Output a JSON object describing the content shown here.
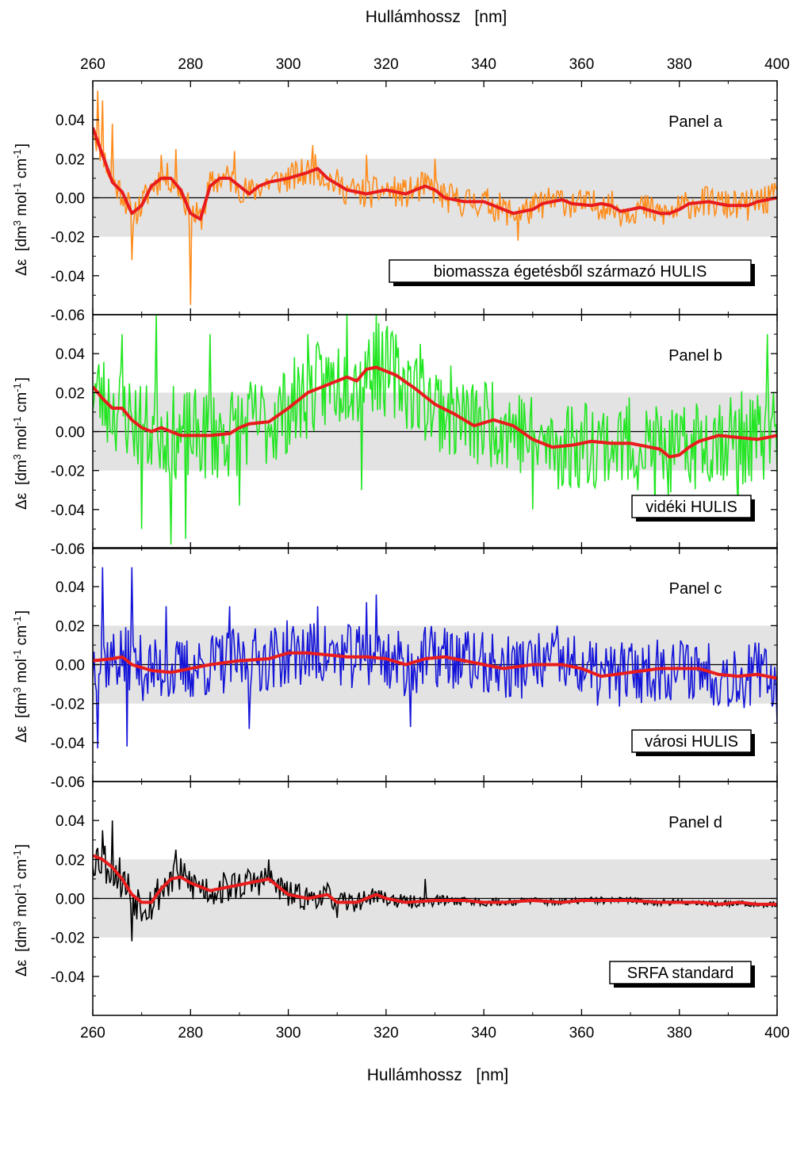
{
  "figure": {
    "top_axis_title": "Hullámhossz   [nm]",
    "bottom_axis_title": "Hullámhossz   [nm]"
  },
  "colors": {
    "raw_a": "#ff8c1a",
    "raw_b": "#22e622",
    "raw_c": "#1414d9",
    "raw_d": "#000000",
    "smooth": "#e81c1c",
    "band": "#e3e3e3"
  },
  "chart_data": [
    {
      "type": "line",
      "panel_label": "Panel a",
      "box_label": "biomassza égetésből származó HULIS",
      "ylabel_parts": [
        "Δε",
        "[dm",
        "3",
        " mol",
        "-1",
        " cm",
        "-1",
        "]"
      ],
      "xlim": [
        260,
        400
      ],
      "ylim": [
        -0.06,
        0.06
      ],
      "x_ticks": [
        260,
        280,
        300,
        320,
        340,
        360,
        380,
        400
      ],
      "y_ticks": [
        "-0.04",
        "-0.02",
        "0.00",
        "0.02",
        "0.04"
      ],
      "y_bottom_tick": "-0.06",
      "band": [
        -0.02,
        0.02
      ],
      "noise": 0.008,
      "seed": 11,
      "series": [
        {
          "role": "raw",
          "color": "#ff8c1a",
          "spikes": [
            [
              261,
              0.055
            ],
            [
              262,
              0.05
            ],
            [
              264,
              0.038
            ],
            [
              268,
              -0.032
            ],
            [
              274,
              0.022
            ],
            [
              277,
              0.025
            ],
            [
              280,
              -0.055
            ],
            [
              289,
              0.024
            ],
            [
              305,
              0.027
            ],
            [
              316,
              0.022
            ],
            [
              330,
              0.02
            ],
            [
              347,
              -0.022
            ]
          ]
        },
        {
          "role": "smoothed",
          "color": "#e81c1c",
          "points": [
            [
              260,
              0.036
            ],
            [
              262,
              0.022
            ],
            [
              264,
              0.008
            ],
            [
              266,
              0.003
            ],
            [
              268,
              -0.008
            ],
            [
              270,
              -0.004
            ],
            [
              272,
              0.006
            ],
            [
              274,
              0.01
            ],
            [
              276,
              0.01
            ],
            [
              278,
              0.004
            ],
            [
              280,
              -0.008
            ],
            [
              282,
              -0.011
            ],
            [
              284,
              0.006
            ],
            [
              286,
              0.01
            ],
            [
              288,
              0.01
            ],
            [
              290,
              0.006
            ],
            [
              292,
              0.002
            ],
            [
              294,
              0.006
            ],
            [
              296,
              0.008
            ],
            [
              300,
              0.01
            ],
            [
              304,
              0.013
            ],
            [
              306,
              0.015
            ],
            [
              308,
              0.01
            ],
            [
              312,
              0.004
            ],
            [
              316,
              0.002
            ],
            [
              320,
              0.004
            ],
            [
              322,
              0.003
            ],
            [
              324,
              0.002
            ],
            [
              326,
              0.004
            ],
            [
              328,
              0.006
            ],
            [
              330,
              0.004
            ],
            [
              332,
              0.0
            ],
            [
              336,
              -0.002
            ],
            [
              340,
              -0.002
            ],
            [
              344,
              -0.006
            ],
            [
              346,
              -0.008
            ],
            [
              348,
              -0.007
            ],
            [
              350,
              -0.006
            ],
            [
              352,
              -0.003
            ],
            [
              356,
              -0.001
            ],
            [
              358,
              -0.003
            ],
            [
              362,
              -0.004
            ],
            [
              364,
              -0.003
            ],
            [
              366,
              -0.004
            ],
            [
              368,
              -0.007
            ],
            [
              370,
              -0.006
            ],
            [
              372,
              -0.005
            ],
            [
              376,
              -0.008
            ],
            [
              378,
              -0.008
            ],
            [
              380,
              -0.006
            ],
            [
              382,
              -0.003
            ],
            [
              386,
              -0.002
            ],
            [
              390,
              -0.004
            ],
            [
              394,
              -0.004
            ],
            [
              396,
              -0.002
            ],
            [
              400,
              0.0
            ]
          ]
        }
      ]
    },
    {
      "type": "line",
      "panel_label": "Panel b",
      "box_label": "vidéki HULIS",
      "ylabel_parts": [
        "Δε",
        "[dm",
        "3",
        " mol",
        "-1",
        " cm",
        "-1",
        "]"
      ],
      "xlim": [
        260,
        400
      ],
      "ylim": [
        -0.06,
        0.06
      ],
      "x_ticks": [
        260,
        280,
        300,
        320,
        340,
        360,
        380,
        400
      ],
      "y_ticks": [
        "-0.04",
        "-0.02",
        "0.00",
        "0.02",
        "0.04"
      ],
      "y_bottom_tick": "-0.06",
      "band": [
        -0.02,
        0.02
      ],
      "noise": 0.024,
      "seed": 23,
      "series": [
        {
          "role": "raw",
          "color": "#22e622",
          "spikes": [
            [
              266,
              0.05
            ],
            [
              270,
              -0.05
            ],
            [
              273,
              0.06
            ],
            [
              276,
              -0.058
            ],
            [
              279,
              -0.055
            ],
            [
              284,
              0.05
            ],
            [
              290,
              -0.038
            ],
            [
              304,
              0.05
            ],
            [
              312,
              0.06
            ],
            [
              315,
              -0.03
            ],
            [
              318,
              0.06
            ],
            [
              327,
              0.045
            ],
            [
              350,
              -0.04
            ],
            [
              375,
              -0.045
            ],
            [
              392,
              -0.04
            ],
            [
              398,
              0.05
            ]
          ]
        },
        {
          "role": "smoothed",
          "color": "#e81c1c",
          "points": [
            [
              260,
              0.023
            ],
            [
              262,
              0.017
            ],
            [
              264,
              0.012
            ],
            [
              266,
              0.012
            ],
            [
              268,
              0.006
            ],
            [
              270,
              0.002
            ],
            [
              272,
              0.0
            ],
            [
              274,
              0.002
            ],
            [
              276,
              0.0
            ],
            [
              278,
              -0.002
            ],
            [
              280,
              -0.002
            ],
            [
              284,
              -0.002
            ],
            [
              288,
              -0.001
            ],
            [
              290,
              0.002
            ],
            [
              292,
              0.004
            ],
            [
              296,
              0.005
            ],
            [
              300,
              0.012
            ],
            [
              304,
              0.02
            ],
            [
              308,
              0.024
            ],
            [
              312,
              0.028
            ],
            [
              314,
              0.026
            ],
            [
              316,
              0.032
            ],
            [
              318,
              0.033
            ],
            [
              322,
              0.029
            ],
            [
              326,
              0.022
            ],
            [
              330,
              0.014
            ],
            [
              334,
              0.009
            ],
            [
              338,
              0.003
            ],
            [
              342,
              0.006
            ],
            [
              346,
              0.003
            ],
            [
              350,
              -0.004
            ],
            [
              354,
              -0.008
            ],
            [
              358,
              -0.007
            ],
            [
              362,
              -0.005
            ],
            [
              366,
              -0.006
            ],
            [
              370,
              -0.006
            ],
            [
              374,
              -0.008
            ],
            [
              376,
              -0.009
            ],
            [
              378,
              -0.013
            ],
            [
              380,
              -0.012
            ],
            [
              382,
              -0.008
            ],
            [
              384,
              -0.005
            ],
            [
              388,
              -0.002
            ],
            [
              392,
              -0.003
            ],
            [
              396,
              -0.004
            ],
            [
              400,
              -0.002
            ]
          ]
        }
      ]
    },
    {
      "type": "line",
      "panel_label": "Panel c",
      "box_label": "városi HULIS",
      "ylabel_parts": [
        "Δε",
        "[dm",
        "3",
        " mol",
        "-1",
        " cm",
        "-1",
        "]"
      ],
      "xlim": [
        260,
        400
      ],
      "ylim": [
        -0.06,
        0.06
      ],
      "x_ticks": [
        260,
        280,
        300,
        320,
        340,
        360,
        380,
        400
      ],
      "y_ticks": [
        "-0.04",
        "-0.02",
        "0.00",
        "0.02",
        "0.04"
      ],
      "y_bottom_tick": "-0.06",
      "band": [
        -0.02,
        0.02
      ],
      "noise": 0.017,
      "seed": 37,
      "series": [
        {
          "role": "raw",
          "color": "#1414d9",
          "spikes": [
            [
              261,
              -0.043
            ],
            [
              262,
              0.05
            ],
            [
              267,
              -0.042
            ],
            [
              268,
              0.05
            ],
            [
              275,
              0.03
            ],
            [
              288,
              0.03
            ],
            [
              292,
              -0.033
            ],
            [
              306,
              0.03
            ],
            [
              316,
              0.032
            ],
            [
              318,
              0.036
            ],
            [
              325,
              -0.032
            ],
            [
              355,
              0.02
            ],
            [
              400,
              -0.03
            ]
          ]
        },
        {
          "role": "smoothed",
          "color": "#e81c1c",
          "points": [
            [
              260,
              0.002
            ],
            [
              264,
              0.003
            ],
            [
              266,
              0.004
            ],
            [
              268,
              0.0
            ],
            [
              272,
              -0.003
            ],
            [
              276,
              -0.004
            ],
            [
              280,
              -0.002
            ],
            [
              284,
              0.0
            ],
            [
              290,
              0.002
            ],
            [
              296,
              0.003
            ],
            [
              300,
              0.006
            ],
            [
              304,
              0.006
            ],
            [
              308,
              0.005
            ],
            [
              312,
              0.004
            ],
            [
              316,
              0.004
            ],
            [
              320,
              0.003
            ],
            [
              324,
              0.0
            ],
            [
              328,
              0.003
            ],
            [
              332,
              0.004
            ],
            [
              336,
              0.002
            ],
            [
              340,
              0.0
            ],
            [
              344,
              -0.002
            ],
            [
              350,
              0.0
            ],
            [
              356,
              0.0
            ],
            [
              360,
              -0.002
            ],
            [
              364,
              -0.006
            ],
            [
              370,
              -0.004
            ],
            [
              376,
              -0.002
            ],
            [
              380,
              -0.002
            ],
            [
              384,
              -0.002
            ],
            [
              388,
              -0.005
            ],
            [
              392,
              -0.006
            ],
            [
              396,
              -0.005
            ],
            [
              400,
              -0.007
            ]
          ]
        }
      ]
    },
    {
      "type": "line",
      "panel_label": "Panel d",
      "box_label": "SRFA standard",
      "ylabel_parts": [
        "Δε",
        "[dm",
        "3",
        " mol",
        "-1",
        " cm",
        "-1",
        "]"
      ],
      "xlim": [
        260,
        400
      ],
      "ylim": [
        -0.06,
        0.06
      ],
      "x_ticks": [
        260,
        280,
        300,
        320,
        340,
        360,
        380,
        400
      ],
      "y_ticks": [
        "-0.04",
        "-0.02",
        "0.00",
        "0.02",
        "0.04"
      ],
      "band": [
        -0.02,
        0.02
      ],
      "noise_profile": [
        [
          260,
          0.012
        ],
        [
          300,
          0.007
        ],
        [
          320,
          0.004
        ],
        [
          340,
          0.002
        ],
        [
          400,
          0.0015
        ]
      ],
      "seed": 53,
      "series": [
        {
          "role": "raw",
          "color": "#000000",
          "spikes": [
            [
              262,
              0.035
            ],
            [
              264,
              0.04
            ],
            [
              268,
              -0.022
            ],
            [
              277,
              0.025
            ],
            [
              296,
              0.02
            ],
            [
              310,
              -0.01
            ],
            [
              328,
              0.01
            ]
          ]
        },
        {
          "role": "smoothed",
          "color": "#e81c1c",
          "points": [
            [
              260,
              0.022
            ],
            [
              262,
              0.02
            ],
            [
              264,
              0.016
            ],
            [
              266,
              0.01
            ],
            [
              268,
              0.002
            ],
            [
              270,
              -0.002
            ],
            [
              272,
              -0.002
            ],
            [
              274,
              0.005
            ],
            [
              276,
              0.01
            ],
            [
              278,
              0.011
            ],
            [
              280,
              0.008
            ],
            [
              284,
              0.004
            ],
            [
              288,
              0.006
            ],
            [
              292,
              0.008
            ],
            [
              296,
              0.01
            ],
            [
              298,
              0.006
            ],
            [
              300,
              0.002
            ],
            [
              304,
              0.0
            ],
            [
              308,
              0.002
            ],
            [
              310,
              -0.002
            ],
            [
              314,
              -0.002
            ],
            [
              318,
              0.002
            ],
            [
              320,
              0.0
            ],
            [
              324,
              -0.002
            ],
            [
              330,
              -0.001
            ],
            [
              336,
              -0.001
            ],
            [
              340,
              -0.002
            ],
            [
              344,
              -0.002
            ],
            [
              350,
              -0.001
            ],
            [
              356,
              -0.002
            ],
            [
              360,
              -0.001
            ],
            [
              366,
              -0.001
            ],
            [
              370,
              -0.001
            ],
            [
              376,
              -0.002
            ],
            [
              380,
              -0.002
            ],
            [
              384,
              -0.002
            ],
            [
              388,
              -0.003
            ],
            [
              392,
              -0.002
            ],
            [
              396,
              -0.003
            ],
            [
              400,
              -0.003
            ]
          ]
        }
      ]
    }
  ]
}
